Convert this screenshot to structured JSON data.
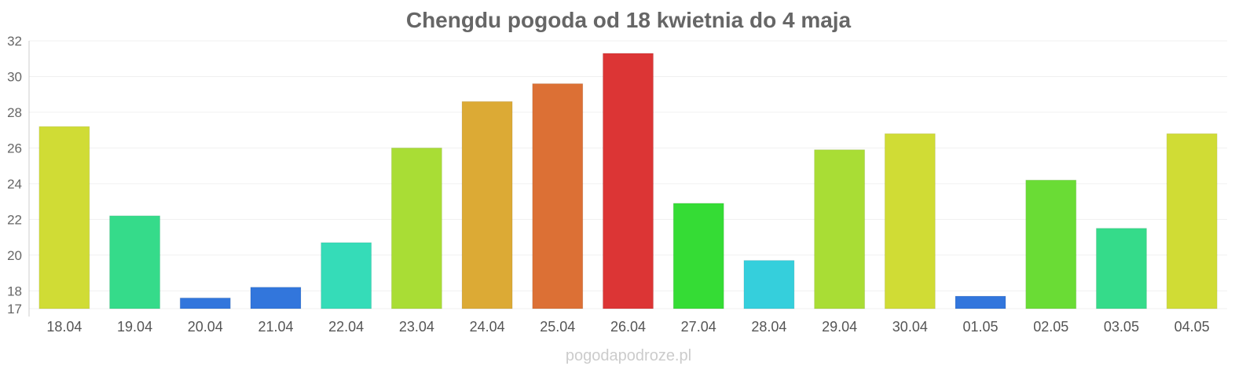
{
  "chart_data": {
    "type": "bar",
    "title": "Chengdu pogoda od 18 kwietnia do 4 maja",
    "credit": "pogodapodroze.pl",
    "xlabel": "",
    "ylabel": "",
    "ylim": [
      17,
      32
    ],
    "yticks": [
      17,
      18,
      20,
      22,
      24,
      26,
      28,
      30,
      32
    ],
    "grid": true,
    "categories": [
      "18.04",
      "19.04",
      "20.04",
      "21.04",
      "22.04",
      "23.04",
      "24.04",
      "25.04",
      "26.04",
      "27.04",
      "28.04",
      "29.04",
      "30.04",
      "01.05",
      "02.05",
      "03.05",
      "04.05"
    ],
    "values": [
      27.2,
      22.2,
      17.6,
      18.2,
      20.7,
      26.0,
      28.6,
      29.6,
      31.3,
      22.9,
      19.7,
      25.9,
      26.8,
      17.7,
      24.2,
      21.5,
      26.8
    ],
    "colors": [
      "#d0dc35",
      "#35db8a",
      "#3276dc",
      "#3276dc",
      "#35dcb8",
      "#a9dd35",
      "#dcaa35",
      "#dc7035",
      "#dc3535",
      "#35dc35",
      "#35cfdc",
      "#a9dd35",
      "#d0dc35",
      "#3276dc",
      "#6adc35",
      "#35db8a",
      "#d0dc35"
    ]
  }
}
